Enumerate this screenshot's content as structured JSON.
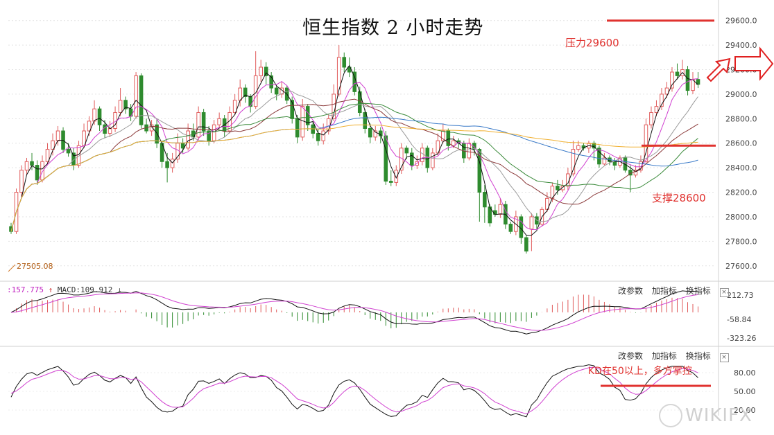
{
  "title": "恒生指数 2 小时走势",
  "annotations": {
    "resistance": "压力29600",
    "support": "支撑28600",
    "kd_note": "KD在50以上，多方掌控"
  },
  "colors": {
    "up": "#e05a5a",
    "down": "#2e8b2e",
    "ma_black": "#111111",
    "ma_magenta": "#d040d0",
    "ma_gray": "#9a9a9a",
    "ma_brown": "#8b3a3a",
    "ma_green": "#3a8a3a",
    "ma_blue": "#3a7ac8",
    "ma_orange": "#f0b030",
    "annotation": "#e0322f"
  },
  "macd_panel": {
    "label_prefix": ":157.775",
    "label_macd": "MACD:109.912",
    "ticks": [
      "212.73",
      "-58.84",
      "-323.26"
    ]
  },
  "toolbar": {
    "modify": "改参数",
    "add": "加指标",
    "swap": "换指标",
    "close": "×"
  },
  "kd_panel": {
    "ticks": [
      "80.00",
      "50.00",
      "20.00"
    ]
  },
  "watermark": "WIKIFX",
  "chart_data": {
    "type": "candlestick",
    "title": "恒生指数 2 小时走势",
    "ylim": [
      27480,
      29700
    ],
    "yticks": [
      27600,
      27800,
      28000,
      28200,
      28400,
      28600,
      28800,
      29000,
      29200,
      29400,
      29600
    ],
    "ytick_labels": [
      "27600.0",
      "27800.0",
      "28000.0",
      "28200.0",
      "28400.0",
      "28600.0",
      "28800.0",
      "29000.0",
      "29200.0",
      "29400.0",
      "29600.0"
    ],
    "low_label": "27505.08",
    "resistance": 29600,
    "support": 28580,
    "candles": [
      [
        27920,
        27880,
        27950,
        27860
      ],
      [
        27880,
        28200,
        28230,
        27860
      ],
      [
        28200,
        28380,
        28420,
        28150
      ],
      [
        28380,
        28450,
        28480,
        28340
      ],
      [
        28450,
        28420,
        28520,
        28380
      ],
      [
        28420,
        28300,
        28460,
        28260
      ],
      [
        28300,
        28450,
        28500,
        28280
      ],
      [
        28450,
        28550,
        28600,
        28420
      ],
      [
        28550,
        28620,
        28680,
        28500
      ],
      [
        28620,
        28700,
        28740,
        28580
      ],
      [
        28700,
        28550,
        28730,
        28520
      ],
      [
        28550,
        28520,
        28600,
        28490
      ],
      [
        28520,
        28420,
        28560,
        28380
      ],
      [
        28420,
        28580,
        28620,
        28400
      ],
      [
        28580,
        28700,
        28760,
        28560
      ],
      [
        28700,
        28780,
        28820,
        28660
      ],
      [
        28780,
        28880,
        28950,
        28750
      ],
      [
        28880,
        28750,
        28900,
        28700
      ],
      [
        28750,
        28680,
        28790,
        28640
      ],
      [
        28680,
        28720,
        28780,
        28650
      ],
      [
        28720,
        28850,
        28900,
        28690
      ],
      [
        28850,
        28950,
        29050,
        28820
      ],
      [
        28950,
        28880,
        28980,
        28840
      ],
      [
        28880,
        28820,
        28920,
        28780
      ],
      [
        28820,
        29150,
        29180,
        28800
      ],
      [
        29150,
        28750,
        29170,
        28720
      ],
      [
        28750,
        28700,
        28800,
        28680
      ],
      [
        28700,
        28750,
        28790,
        28660
      ],
      [
        28750,
        28600,
        28800,
        28560
      ],
      [
        28600,
        28450,
        28620,
        28400
      ],
      [
        28450,
        28400,
        28520,
        28280
      ],
      [
        28400,
        28470,
        28520,
        28360
      ],
      [
        28470,
        28600,
        28680,
        28440
      ],
      [
        28600,
        28560,
        28640,
        28520
      ],
      [
        28560,
        28700,
        28760,
        28540
      ],
      [
        28700,
        28650,
        28760,
        28620
      ],
      [
        28650,
        28850,
        28900,
        28620
      ],
      [
        28850,
        28700,
        28880,
        28660
      ],
      [
        28700,
        28620,
        28740,
        28580
      ],
      [
        28620,
        28750,
        28790,
        28600
      ],
      [
        28750,
        28800,
        28850,
        28720
      ],
      [
        28800,
        28700,
        28830,
        28650
      ],
      [
        28700,
        28850,
        28900,
        28680
      ],
      [
        28850,
        28950,
        29000,
        28830
      ],
      [
        28950,
        29050,
        29120,
        28900
      ],
      [
        29050,
        28980,
        29080,
        28930
      ],
      [
        28980,
        28900,
        29000,
        28850
      ],
      [
        28900,
        29150,
        29350,
        28880
      ],
      [
        29150,
        29220,
        29280,
        29100
      ],
      [
        29220,
        29150,
        29260,
        29080
      ],
      [
        29150,
        29050,
        29180,
        29010
      ],
      [
        29050,
        29000,
        29080,
        28950
      ],
      [
        29000,
        29050,
        29100,
        28970
      ],
      [
        29050,
        28950,
        29070,
        28920
      ],
      [
        28950,
        28800,
        28980,
        28760
      ],
      [
        28800,
        28650,
        28830,
        28600
      ],
      [
        28650,
        28900,
        28960,
        28620
      ],
      [
        28900,
        28750,
        28920,
        28700
      ],
      [
        28750,
        28680,
        28780,
        28640
      ],
      [
        28680,
        28620,
        28720,
        28580
      ],
      [
        28620,
        28700,
        28760,
        28590
      ],
      [
        28700,
        28800,
        28840,
        28670
      ],
      [
        28800,
        29000,
        29080,
        28780
      ],
      [
        29000,
        29300,
        29400,
        28980
      ],
      [
        29300,
        29220,
        29340,
        29180
      ],
      [
        29220,
        29180,
        29300,
        29140
      ],
      [
        29180,
        29020,
        29220,
        28990
      ],
      [
        29020,
        28850,
        29060,
        28820
      ],
      [
        28850,
        28720,
        28880,
        28680
      ],
      [
        28720,
        28650,
        28760,
        28600
      ],
      [
        28650,
        28700,
        28740,
        28620
      ],
      [
        28700,
        28660,
        28730,
        28600
      ],
      [
        28660,
        28290,
        28700,
        28260
      ],
      [
        28290,
        28280,
        28380,
        28250
      ],
      [
        28280,
        28380,
        28420,
        28250
      ],
      [
        28380,
        28560,
        28600,
        28350
      ],
      [
        28560,
        28520,
        28580,
        28470
      ],
      [
        28520,
        28420,
        28560,
        28380
      ],
      [
        28420,
        28450,
        28500,
        28390
      ],
      [
        28450,
        28560,
        28600,
        28420
      ],
      [
        28560,
        28400,
        28580,
        28360
      ],
      [
        28400,
        28520,
        28560,
        28380
      ],
      [
        28520,
        28620,
        28680,
        28500
      ],
      [
        28620,
        28700,
        28760,
        28600
      ],
      [
        28700,
        28580,
        28720,
        28540
      ],
      [
        28580,
        28620,
        28660,
        28560
      ],
      [
        28620,
        28600,
        28640,
        28560
      ],
      [
        28600,
        28480,
        28620,
        28440
      ],
      [
        28480,
        28600,
        28640,
        28460
      ],
      [
        28600,
        28550,
        28620,
        28500
      ],
      [
        28550,
        28200,
        28560,
        27960
      ],
      [
        28200,
        28080,
        28260,
        27950
      ],
      [
        28080,
        27950,
        28100,
        27920
      ],
      [
        28050,
        28020,
        28100,
        28000
      ],
      [
        28020,
        28100,
        28150,
        27990
      ],
      [
        28100,
        27940,
        28130,
        27900
      ],
      [
        27940,
        27880,
        27960,
        27860
      ],
      [
        27880,
        28000,
        28050,
        27850
      ],
      [
        28000,
        27830,
        28020,
        27780
      ],
      [
        27830,
        27720,
        27850,
        27700
      ],
      [
        27900,
        28000,
        28030,
        27720
      ],
      [
        28000,
        27940,
        28030,
        27900
      ],
      [
        27940,
        28060,
        28080,
        27920
      ],
      [
        28060,
        28150,
        28200,
        28040
      ],
      [
        28150,
        28250,
        28280,
        28120
      ],
      [
        28250,
        28220,
        28300,
        28180
      ],
      [
        28220,
        28250,
        28300,
        28200
      ],
      [
        28250,
        28350,
        28400,
        28220
      ],
      [
        28350,
        28550,
        28620,
        28330
      ],
      [
        28550,
        28580,
        28620,
        28530
      ],
      [
        28580,
        28560,
        28600,
        28540
      ],
      [
        28560,
        28600,
        28620,
        28520
      ],
      [
        28600,
        28560,
        28620,
        28460
      ],
      [
        28560,
        28430,
        28580,
        28400
      ],
      [
        28430,
        28480,
        28520,
        28420
      ],
      [
        28480,
        28450,
        28500,
        28420
      ],
      [
        28450,
        28420,
        28480,
        28380
      ],
      [
        28420,
        28480,
        28500,
        28400
      ],
      [
        28480,
        28380,
        28500,
        28360
      ],
      [
        28380,
        28340,
        28420,
        28200
      ],
      [
        28340,
        28380,
        28420,
        28320
      ],
      [
        28380,
        28450,
        28500,
        28360
      ],
      [
        28450,
        28750,
        28800,
        28430
      ],
      [
        28750,
        28850,
        28900,
        28720
      ],
      [
        28850,
        28900,
        28950,
        28820
      ],
      [
        28900,
        29000,
        29050,
        28870
      ],
      [
        29000,
        29050,
        29100,
        28970
      ],
      [
        29050,
        29180,
        29220,
        29020
      ],
      [
        29180,
        29150,
        29250,
        29120
      ],
      [
        29150,
        29200,
        29280,
        29120
      ],
      [
        29200,
        29030,
        29230,
        28990
      ],
      [
        29030,
        29120,
        29180,
        29000
      ],
      [
        29120,
        29080,
        29180,
        29050
      ]
    ]
  }
}
